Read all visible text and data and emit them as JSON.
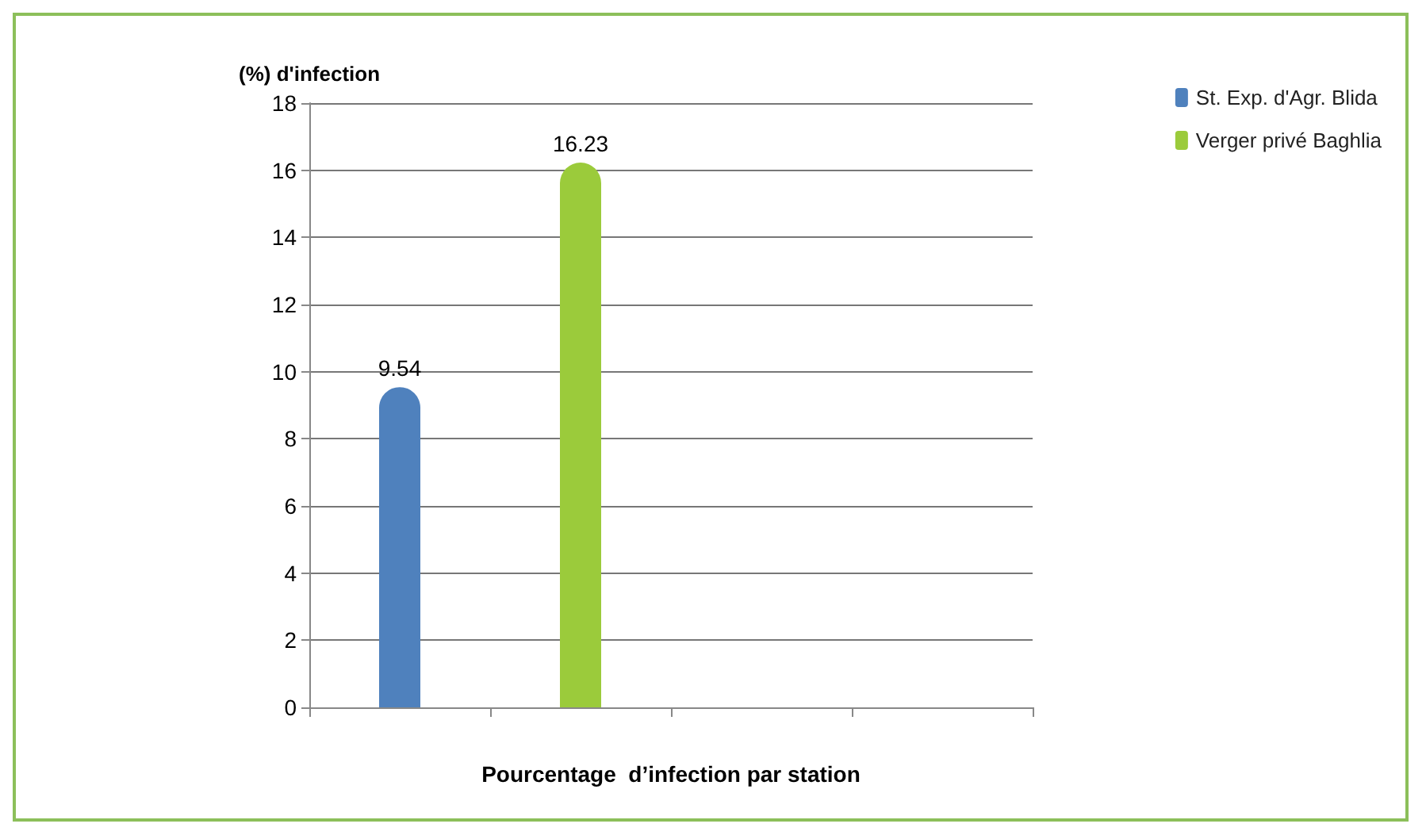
{
  "chart_data": {
    "type": "bar",
    "ylabel": "(%) d'infection",
    "xlabel": "Pourcentage  d’infection par station",
    "categories": [
      null,
      null,
      null,
      null
    ],
    "series": [
      {
        "name": "St. Exp. d'Agr. Blida",
        "color": "#4f81bd",
        "values": [
          9.54,
          null,
          null,
          null
        ]
      },
      {
        "name": "Verger privé Baghlia",
        "color": "#9bcb3b",
        "values": [
          null,
          16.23,
          null,
          null
        ]
      }
    ],
    "ylim": [
      0,
      18
    ],
    "yticks": [
      0,
      2,
      4,
      6,
      8,
      10,
      12,
      14,
      16,
      18
    ],
    "grid": "y",
    "legend": "top right",
    "data_labels": true
  }
}
